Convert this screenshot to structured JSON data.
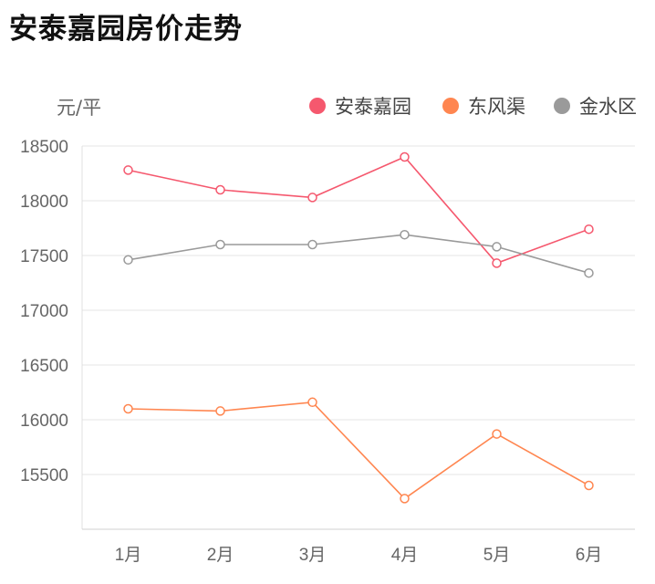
{
  "title": "安泰嘉园房价走势",
  "chart_data": {
    "type": "line",
    "title": "安泰嘉园房价走势",
    "ylabel": "元/平",
    "categories": [
      "1月",
      "2月",
      "3月",
      "4月",
      "5月",
      "6月"
    ],
    "ylim": [
      15000,
      18500
    ],
    "yticks": [
      15500,
      16000,
      16500,
      17000,
      17500,
      18000,
      18500
    ],
    "grid": true,
    "legend": "top-right",
    "series": [
      {
        "name": "安泰嘉园",
        "color": "#f5586e",
        "values": [
          18280,
          18100,
          18030,
          18400,
          17430,
          17740
        ]
      },
      {
        "name": "东风渠",
        "color": "#ff8650",
        "values": [
          16100,
          16080,
          16160,
          15280,
          15870,
          15400
        ]
      },
      {
        "name": "金水区",
        "color": "#9a9a9a",
        "values": [
          17460,
          17600,
          17600,
          17690,
          17580,
          17340
        ]
      }
    ]
  }
}
